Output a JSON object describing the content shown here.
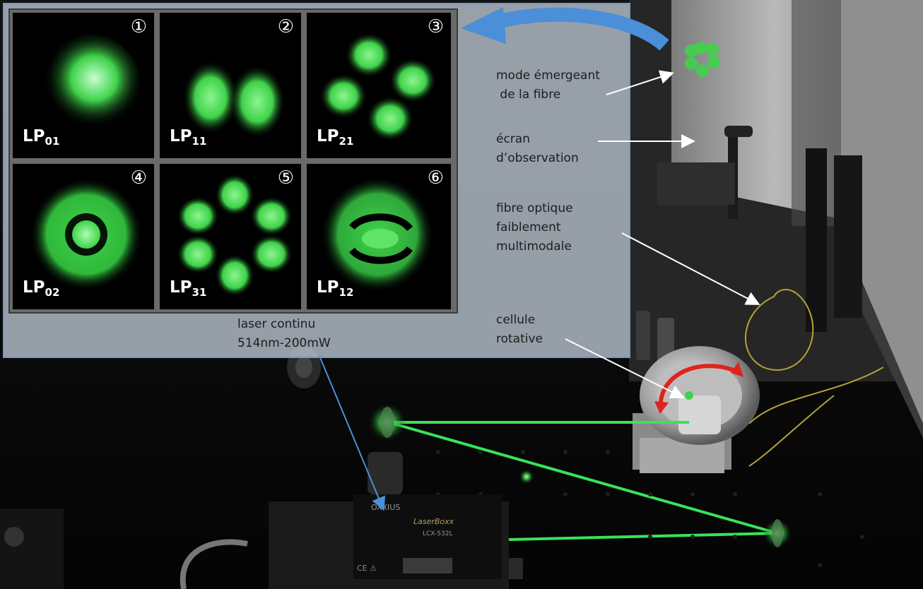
{
  "modes": [
    {
      "number": "①",
      "label_main": "LP",
      "label_sub": "01"
    },
    {
      "number": "②",
      "label_main": "LP",
      "label_sub": "11"
    },
    {
      "number": "③",
      "label_main": "LP",
      "label_sub": "21"
    },
    {
      "number": "④",
      "label_main": "LP",
      "label_sub": "02"
    },
    {
      "number": "⑤",
      "label_main": "LP",
      "label_sub": "31"
    },
    {
      "number": "⑥",
      "label_main": "LP",
      "label_sub": "12"
    }
  ],
  "laser": {
    "line1": "laser continu",
    "line2": "514nm-200mW"
  },
  "callouts": {
    "mode_emergeant": {
      "line1": "mode émergeant",
      "line2": " de la fibre"
    },
    "ecran": {
      "line1": "écran",
      "line2": "d’observation"
    },
    "fibre": {
      "line1": "fibre optique",
      "line2": "faiblement",
      "line3": "multimodale"
    },
    "cellule": {
      "line1": "cellule",
      "line2": "rotative"
    }
  },
  "device_text": {
    "brand": "OXXIUS",
    "model": "LaserBoxx",
    "ref": "LCX-532L",
    "marks": "CE ⚠"
  },
  "colors": {
    "laser_green": "#38e35a",
    "mode_green": "#3fd24a",
    "arrow_blue": "#4a8fd8",
    "rotation_red": "#e0231e",
    "panel_border": "#6f9bd0"
  }
}
